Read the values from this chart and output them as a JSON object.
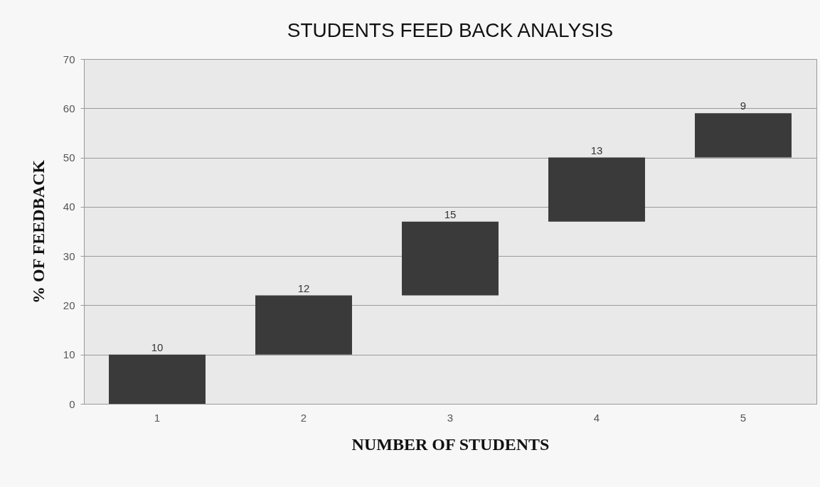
{
  "chart_data": {
    "type": "bar",
    "title": "STUDENTS FEED BACK ANALYSIS",
    "xlabel": "NUMBER OF STUDENTS",
    "ylabel": "% OF FEEDBACK",
    "categories": [
      "1",
      "2",
      "3",
      "4",
      "5"
    ],
    "values": [
      10,
      12,
      15,
      13,
      9
    ],
    "base": [
      0,
      10,
      22,
      37,
      50
    ],
    "color": "#3a3a3a",
    "ylim": [
      0,
      70
    ],
    "yticks": [
      0,
      10,
      20,
      30,
      40,
      50,
      60,
      70
    ],
    "grid": "y",
    "data_labels": true
  }
}
